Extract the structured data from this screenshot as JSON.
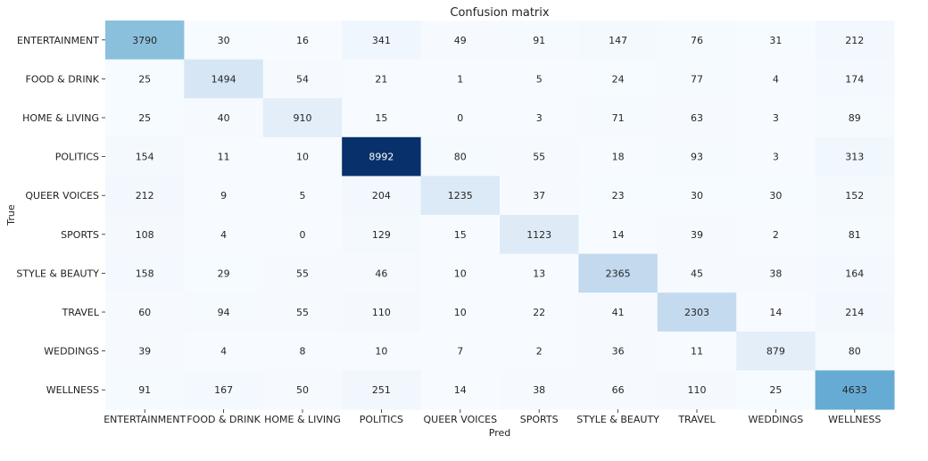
{
  "chart_data": {
    "type": "heatmap",
    "title": "Confusion matrix",
    "xlabel": "Pred",
    "ylabel": "True",
    "colormap": "Blues",
    "colors": {
      "low": "#f7fbff",
      "high": "#08306b"
    },
    "x_categories": [
      "ENTERTAINMENT",
      "FOOD & DRINK",
      "HOME & LIVING",
      "POLITICS",
      "QUEER VOICES",
      "SPORTS",
      "STYLE & BEAUTY",
      "TRAVEL",
      "WEDDINGS",
      "WELLNESS"
    ],
    "y_categories": [
      "ENTERTAINMENT",
      "FOOD & DRINK",
      "HOME & LIVING",
      "POLITICS",
      "QUEER VOICES",
      "SPORTS",
      "STYLE & BEAUTY",
      "TRAVEL",
      "WEDDINGS",
      "WELLNESS"
    ],
    "values": [
      [
        3790,
        30,
        16,
        341,
        49,
        91,
        147,
        76,
        31,
        212
      ],
      [
        25,
        1494,
        54,
        21,
        1,
        5,
        24,
        77,
        4,
        174
      ],
      [
        25,
        40,
        910,
        15,
        0,
        3,
        71,
        63,
        3,
        89
      ],
      [
        154,
        11,
        10,
        8992,
        80,
        55,
        18,
        93,
        3,
        313
      ],
      [
        212,
        9,
        5,
        204,
        1235,
        37,
        23,
        30,
        30,
        152
      ],
      [
        108,
        4,
        0,
        129,
        15,
        1123,
        14,
        39,
        2,
        81
      ],
      [
        158,
        29,
        55,
        46,
        10,
        13,
        2365,
        45,
        38,
        164
      ],
      [
        60,
        94,
        55,
        110,
        10,
        22,
        41,
        2303,
        14,
        214
      ],
      [
        39,
        4,
        8,
        10,
        7,
        2,
        36,
        11,
        879,
        80
      ],
      [
        91,
        167,
        50,
        251,
        14,
        38,
        66,
        110,
        25,
        4633
      ]
    ],
    "vmin": 0,
    "vmax": 8992
  }
}
